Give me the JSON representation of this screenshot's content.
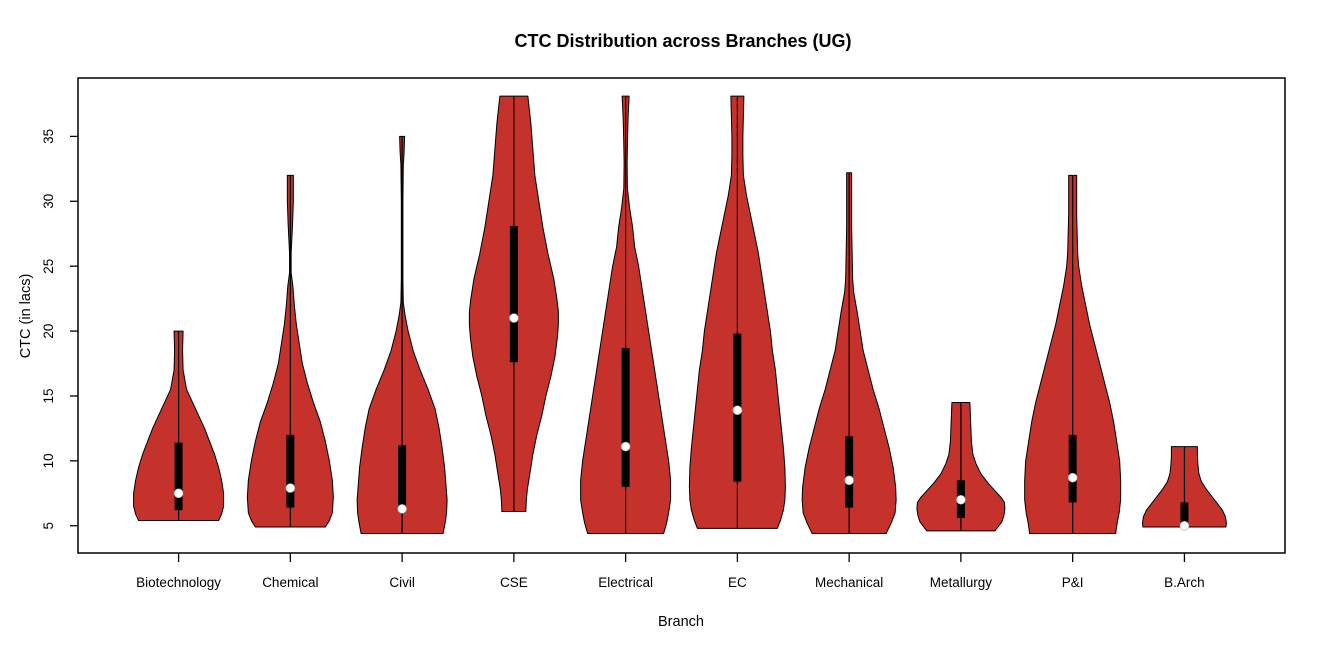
{
  "chart_data": {
    "type": "violin",
    "title": "CTC Distribution across Branches (UG)",
    "xlabel": "Branch",
    "ylabel": "CTC (in lacs)",
    "y_ticks": [
      5,
      10,
      15,
      20,
      25,
      30,
      35
    ],
    "ylim": [
      2.9,
      39.5
    ],
    "x_domain": [
      0.1,
      10.9
    ],
    "grid": false,
    "legend": "none",
    "colors": {
      "violin_fill": "#C5312B",
      "outline": "#000000",
      "box": "#000000",
      "median_dot": "#FFFFFF",
      "background": "#FFFFFF"
    },
    "categories": [
      "Biotechnology",
      "Chemical",
      "Civil",
      "CSE",
      "Electrical",
      "EC",
      "Mechanical",
      "Metallurgy",
      "P&I",
      "B.Arch"
    ],
    "series": [
      {
        "name": "Biotechnology",
        "min": 5.4,
        "max": 20.0,
        "q1": 6.2,
        "q3": 11.4,
        "median": 7.5,
        "profile": [
          [
            20,
            4.5
          ],
          [
            18.5,
            4
          ],
          [
            17,
            4.5
          ],
          [
            15.5,
            8
          ],
          [
            14.5,
            14
          ],
          [
            13.5,
            20
          ],
          [
            12.5,
            26
          ],
          [
            11.5,
            31
          ],
          [
            10.5,
            36
          ],
          [
            9.5,
            40
          ],
          [
            8.5,
            43
          ],
          [
            7.5,
            45
          ],
          [
            6.5,
            45
          ],
          [
            5.9,
            43
          ],
          [
            5.4,
            40
          ]
        ]
      },
      {
        "name": "Chemical",
        "min": 4.9,
        "max": 32.0,
        "q1": 6.4,
        "q3": 12.0,
        "median": 7.9,
        "profile": [
          [
            32,
            3
          ],
          [
            30,
            3
          ],
          [
            28.2,
            2.2
          ],
          [
            26,
            0.8
          ],
          [
            24.5,
            0.8
          ],
          [
            23.5,
            2.5
          ],
          [
            22,
            4
          ],
          [
            20.5,
            6
          ],
          [
            19,
            9
          ],
          [
            17.5,
            12
          ],
          [
            16,
            17
          ],
          [
            14.5,
            23
          ],
          [
            13,
            30
          ],
          [
            11.5,
            35
          ],
          [
            10,
            39
          ],
          [
            8.5,
            42
          ],
          [
            7.2,
            43
          ],
          [
            6,
            42
          ],
          [
            5.4,
            39
          ],
          [
            4.9,
            35
          ]
        ]
      },
      {
        "name": "Civil",
        "min": 4.4,
        "max": 35.0,
        "q1": 6.1,
        "q3": 11.2,
        "median": 6.3,
        "profile": [
          [
            35,
            2.5
          ],
          [
            33.8,
            2
          ],
          [
            32.8,
            1.2
          ],
          [
            30,
            0.8
          ],
          [
            27,
            0.8
          ],
          [
            24,
            0.8
          ],
          [
            22.2,
            1.2
          ],
          [
            21.2,
            3
          ],
          [
            20,
            6
          ],
          [
            18.5,
            11
          ],
          [
            17,
            18
          ],
          [
            15.5,
            26
          ],
          [
            14,
            33
          ],
          [
            12.5,
            37
          ],
          [
            11,
            40
          ],
          [
            9.5,
            42.5
          ],
          [
            8,
            44
          ],
          [
            7,
            45
          ],
          [
            6,
            44.5
          ],
          [
            5.2,
            43
          ],
          [
            4.4,
            41
          ]
        ]
      },
      {
        "name": "CSE",
        "min": 6.1,
        "max": 38.1,
        "q1": 17.6,
        "q3": 28.1,
        "median": 21.0,
        "profile": [
          [
            38.1,
            14
          ],
          [
            36,
            17
          ],
          [
            34,
            19
          ],
          [
            32,
            21
          ],
          [
            30,
            25
          ],
          [
            28,
            29
          ],
          [
            26,
            34
          ],
          [
            24,
            40
          ],
          [
            22.5,
            43
          ],
          [
            21.5,
            44.5
          ],
          [
            20.5,
            44.5
          ],
          [
            19.5,
            43.5
          ],
          [
            18,
            41
          ],
          [
            16.5,
            37
          ],
          [
            15,
            32
          ],
          [
            13.5,
            28
          ],
          [
            12,
            23
          ],
          [
            10.5,
            19
          ],
          [
            9,
            16
          ],
          [
            7.8,
            13.5
          ],
          [
            7,
            12.5
          ],
          [
            6.1,
            12
          ]
        ]
      },
      {
        "name": "Electrical",
        "min": 4.4,
        "max": 38.1,
        "q1": 8.0,
        "q3": 18.7,
        "median": 11.1,
        "profile": [
          [
            38.1,
            3.5
          ],
          [
            36.5,
            2.5
          ],
          [
            35,
            2
          ],
          [
            33,
            1.5
          ],
          [
            31,
            1.8
          ],
          [
            29.5,
            4
          ],
          [
            28,
            7
          ],
          [
            26.5,
            9
          ],
          [
            25,
            13
          ],
          [
            23.5,
            16
          ],
          [
            22,
            19
          ],
          [
            20.5,
            22
          ],
          [
            19,
            25
          ],
          [
            17.5,
            28
          ],
          [
            16,
            31
          ],
          [
            14.5,
            34
          ],
          [
            13,
            37
          ],
          [
            11.5,
            40
          ],
          [
            10,
            43
          ],
          [
            8.5,
            45
          ],
          [
            7,
            45
          ],
          [
            6,
            43
          ],
          [
            5.2,
            41
          ],
          [
            4.4,
            38
          ]
        ]
      },
      {
        "name": "EC",
        "min": 4.8,
        "max": 38.1,
        "q1": 8.4,
        "q3": 19.8,
        "median": 13.9,
        "profile": [
          [
            38.1,
            6.5
          ],
          [
            36.5,
            6
          ],
          [
            35,
            5.5
          ],
          [
            33.5,
            5.5
          ],
          [
            32,
            6
          ],
          [
            30.5,
            9
          ],
          [
            29,
            13
          ],
          [
            27.5,
            17
          ],
          [
            26,
            21
          ],
          [
            24.5,
            24
          ],
          [
            23,
            27
          ],
          [
            21.5,
            30
          ],
          [
            20,
            33
          ],
          [
            18.5,
            35
          ],
          [
            17,
            38
          ],
          [
            15.5,
            40
          ],
          [
            14,
            42
          ],
          [
            12.5,
            44
          ],
          [
            11,
            46
          ],
          [
            9.5,
            47.5
          ],
          [
            8,
            48
          ],
          [
            7,
            47.5
          ],
          [
            6.2,
            46
          ],
          [
            5.4,
            43
          ],
          [
            4.8,
            40
          ]
        ]
      },
      {
        "name": "Mechanical",
        "min": 4.4,
        "max": 32.2,
        "q1": 6.4,
        "q3": 11.9,
        "median": 8.5,
        "profile": [
          [
            32.2,
            2.5
          ],
          [
            30,
            2.5
          ],
          [
            28,
            2.5
          ],
          [
            26,
            3
          ],
          [
            24,
            3.5
          ],
          [
            23,
            4.5
          ],
          [
            21.5,
            8
          ],
          [
            20,
            11
          ],
          [
            18.5,
            14
          ],
          [
            17,
            19
          ],
          [
            15.5,
            24
          ],
          [
            14,
            30
          ],
          [
            12.5,
            35
          ],
          [
            11,
            40
          ],
          [
            9.5,
            44
          ],
          [
            8,
            46.5
          ],
          [
            7,
            47
          ],
          [
            6,
            46
          ],
          [
            5.2,
            42
          ],
          [
            4.4,
            37
          ]
        ]
      },
      {
        "name": "Metallurgy",
        "min": 4.6,
        "max": 14.5,
        "q1": 5.6,
        "q3": 8.5,
        "median": 7.0,
        "profile": [
          [
            14.5,
            9
          ],
          [
            13.5,
            9.5
          ],
          [
            12.5,
            10
          ],
          [
            11.5,
            10.5
          ],
          [
            10.5,
            12
          ],
          [
            9.8,
            15
          ],
          [
            9,
            20
          ],
          [
            8.3,
            27
          ],
          [
            7.7,
            34
          ],
          [
            7.2,
            40
          ],
          [
            6.8,
            43.5
          ],
          [
            6.3,
            44
          ],
          [
            5.8,
            43
          ],
          [
            5.3,
            41
          ],
          [
            4.9,
            37
          ],
          [
            4.6,
            34
          ]
        ]
      },
      {
        "name": "P&I",
        "min": 4.4,
        "max": 32.0,
        "q1": 6.8,
        "q3": 12.0,
        "median": 8.7,
        "profile": [
          [
            32,
            4
          ],
          [
            30.5,
            4
          ],
          [
            29,
            4
          ],
          [
            27.5,
            4.5
          ],
          [
            26,
            5
          ],
          [
            25,
            6
          ],
          [
            23.5,
            9
          ],
          [
            22,
            13
          ],
          [
            20.5,
            17
          ],
          [
            19,
            22
          ],
          [
            17.5,
            27
          ],
          [
            16,
            32
          ],
          [
            14.5,
            37
          ],
          [
            13,
            41
          ],
          [
            11.5,
            44
          ],
          [
            10,
            47
          ],
          [
            8.5,
            48
          ],
          [
            7,
            48
          ],
          [
            6,
            46.5
          ],
          [
            5.2,
            44.5
          ],
          [
            4.4,
            43
          ]
        ]
      },
      {
        "name": "B.Arch",
        "min": 4.9,
        "max": 11.1,
        "q1": 5.0,
        "q3": 6.8,
        "median": 5.0,
        "profile": [
          [
            11.1,
            13
          ],
          [
            10.4,
            13
          ],
          [
            9.7,
            13.5
          ],
          [
            9,
            14.5
          ],
          [
            8.4,
            17
          ],
          [
            7.8,
            22
          ],
          [
            7.2,
            28
          ],
          [
            6.7,
            33
          ],
          [
            6.2,
            38
          ],
          [
            5.7,
            41
          ],
          [
            5.2,
            42
          ],
          [
            4.9,
            41.5
          ]
        ]
      }
    ]
  }
}
